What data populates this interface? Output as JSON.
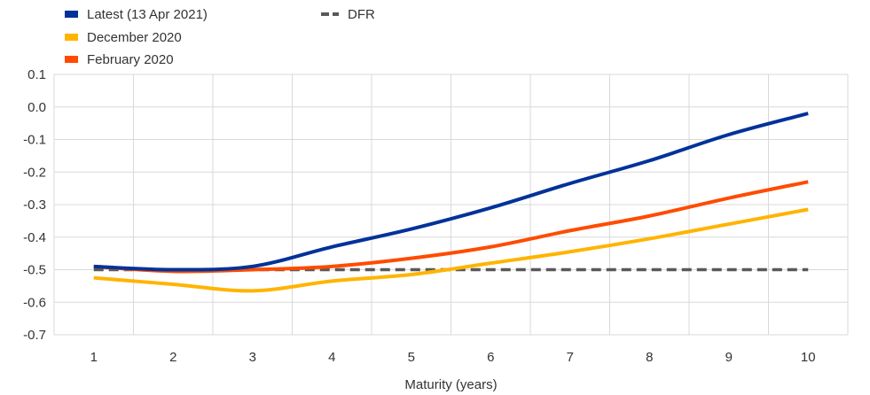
{
  "chart_data": {
    "type": "line",
    "xlabel": "Maturity (years)",
    "ylabel": "",
    "x": [
      1,
      2,
      3,
      4,
      5,
      6,
      7,
      8,
      9,
      10
    ],
    "xlim": [
      0.5,
      10.5
    ],
    "ylim": [
      -0.7,
      0.1
    ],
    "yticks": [
      "0.1",
      "0.0",
      "-0.1",
      "-0.2",
      "-0.3",
      "-0.4",
      "-0.5",
      "-0.6",
      "-0.7"
    ],
    "grid": true,
    "legend_position": "top-left",
    "series": [
      {
        "name": "Latest (13 Apr 2021)",
        "color": "#003299",
        "style": "solid",
        "values": [
          -0.49,
          -0.5,
          -0.49,
          -0.43,
          -0.375,
          -0.31,
          -0.235,
          -0.165,
          -0.085,
          -0.02
        ]
      },
      {
        "name": "December 2020",
        "color": "#FFB400",
        "style": "solid",
        "values": [
          -0.525,
          -0.545,
          -0.565,
          -0.535,
          -0.515,
          -0.48,
          -0.445,
          -0.405,
          -0.36,
          -0.315
        ]
      },
      {
        "name": "February 2020",
        "color": "#FF4B00",
        "style": "solid",
        "values": [
          -0.49,
          -0.505,
          -0.5,
          -0.49,
          -0.465,
          -0.43,
          -0.38,
          -0.335,
          -0.28,
          -0.23
        ]
      },
      {
        "name": "DFR",
        "color": "#595959",
        "style": "dashed",
        "values": [
          -0.5,
          -0.5,
          -0.5,
          -0.5,
          -0.5,
          -0.5,
          -0.5,
          -0.5,
          -0.5,
          -0.5
        ]
      }
    ]
  }
}
